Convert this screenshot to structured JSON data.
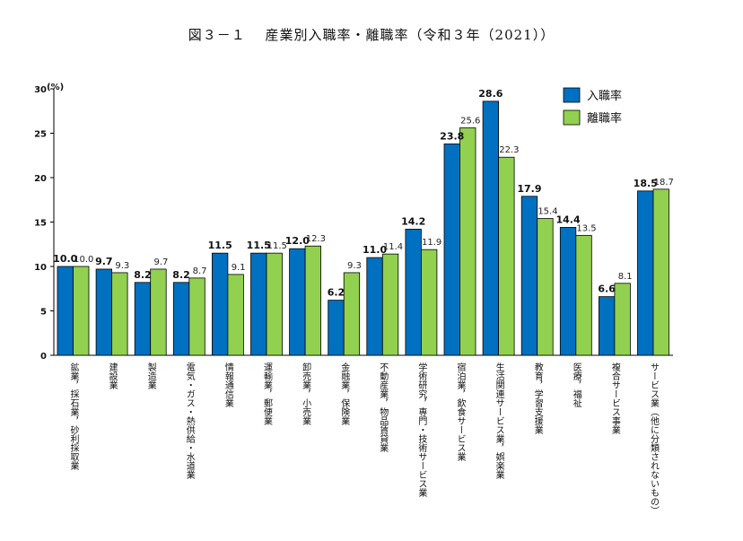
{
  "chart_data": {
    "type": "bar",
    "title": "図３－１　 産業別入職率・離職率（令和３年（2021））",
    "ylabel": "(%)",
    "ylim": [
      0,
      30
    ],
    "yticks": [
      "0",
      "5",
      "10",
      "15",
      "20",
      "25",
      "30"
    ],
    "grid": false,
    "legend_position": "top-right",
    "categories": [
      "鉱業，採石業，砂利採取業",
      "建設業",
      "製造業",
      "電気・ガス・熱供給・水道業",
      "情報通信業",
      "運輸業，郵便業",
      "卸売業，小売業",
      "金融業，保険業",
      "不動産業，物品賃貸業",
      "学術研究，専門・技術サービス業",
      "宿泊業，飲食サービス業",
      "生活関連サービス業，娯楽業",
      "教育，学習支援業",
      "医療，福祉",
      "複合サービス事業",
      "サービス業（他に分類されないもの）"
    ],
    "series": [
      {
        "name": "入職率",
        "color": "#0070c0",
        "values": [
          10.0,
          9.7,
          8.2,
          8.2,
          11.5,
          11.5,
          12.0,
          6.2,
          11.0,
          14.2,
          23.8,
          28.6,
          17.9,
          14.4,
          6.6,
          18.5
        ],
        "labels": [
          "10.0",
          "9.7",
          "8.2",
          "8.2",
          "11.5",
          "11.5",
          "12.0",
          "6.2",
          "11.0",
          "14.2",
          "23.8",
          "28.6",
          "17.9",
          "14.4",
          "6.6",
          "18.5"
        ]
      },
      {
        "name": "離職率",
        "color": "#92d050",
        "values": [
          10.0,
          9.3,
          9.7,
          8.7,
          9.1,
          11.5,
          12.3,
          9.3,
          11.4,
          11.9,
          25.6,
          22.3,
          15.4,
          13.5,
          8.1,
          18.7
        ],
        "labels": [
          "10.0",
          "9.3",
          "9.7",
          "8.7",
          "9.1",
          "11.5",
          "12.3",
          "9.3",
          "11.4",
          "11.9",
          "25.6",
          "22.3",
          "15.4",
          "13.5",
          "8.1",
          "18.7"
        ]
      }
    ]
  }
}
